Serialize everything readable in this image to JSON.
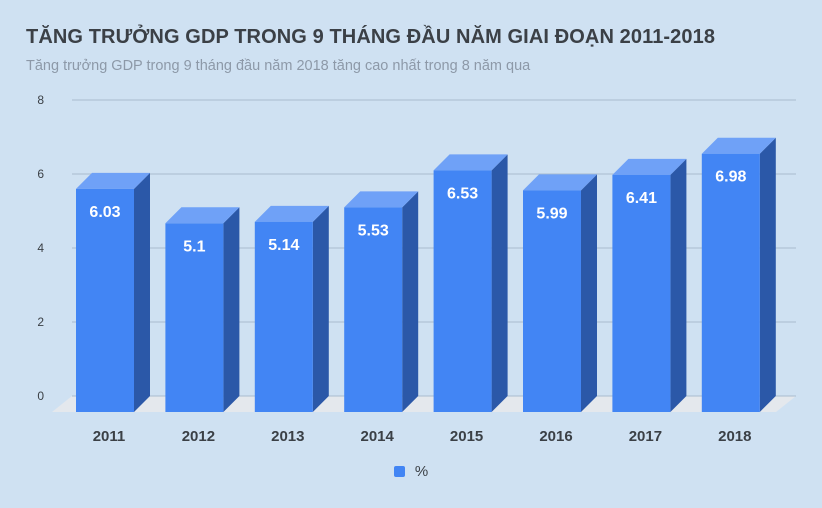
{
  "chart_data": {
    "type": "bar",
    "title": "TĂNG TRƯỞNG GDP TRONG 9 THÁNG ĐẦU NĂM GIAI ĐOẠN 2011-2018",
    "subtitle": "Tăng trưởng GDP trong 9 tháng đầu năm 2018 tăng cao nhất trong 8 năm qua",
    "categories": [
      "2011",
      "2012",
      "2013",
      "2014",
      "2015",
      "2016",
      "2017",
      "2018"
    ],
    "series": [
      {
        "name": "%",
        "values": [
          6.03,
          5.1,
          5.14,
          5.53,
          6.53,
          5.99,
          6.41,
          6.98
        ]
      }
    ],
    "yticks": [
      "0",
      "2",
      "4",
      "6",
      "8"
    ],
    "ylim": [
      0,
      8
    ],
    "grid": true,
    "legend_position": "bottom",
    "colors": {
      "bar_front": "#4285f4",
      "bar_side": "#2b58a8",
      "bar_top": "#6fa1f7",
      "floor": "#e4e8ed",
      "grid": "#a9bccf",
      "value_label": "#ffffff"
    }
  }
}
